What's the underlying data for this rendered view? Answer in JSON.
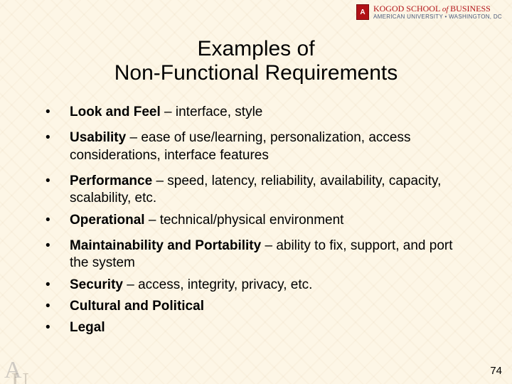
{
  "colors": {
    "background": "#fdf6e6",
    "text": "#000000",
    "header_red": "#b11116",
    "header_blue": "#4a5a7a",
    "watermark_gray": "rgba(120,120,130,0.35)"
  },
  "typography": {
    "title_fontsize": 30,
    "body_fontsize": 19,
    "header_fontsize": 12
  },
  "header": {
    "badge_letter": "A",
    "line1_prefix": "KOGOD SCHOOL ",
    "line1_of": "of ",
    "line1_suffix": "BUSINESS",
    "line2": "AMERICAN UNIVERSITY • WASHINGTON, DC"
  },
  "title": {
    "line1": "Examples of",
    "line2": "Non-Functional Requirements"
  },
  "bullets": [
    {
      "bold": "Look and Feel",
      "rest": " – interface, style",
      "tight": false
    },
    {
      "bold": "Usability",
      "rest": " – ease of use/learning, personalization, access considerations, interface features",
      "tight": false
    },
    {
      "bold": "Performance",
      "rest": " – speed, latency, reliability, availability, capacity, scalability, etc.",
      "tight": true
    },
    {
      "bold": "Operational",
      "rest": " – technical/physical environment",
      "tight": false
    },
    {
      "bold": "Maintainability and Portability",
      "rest": " – ability to fix, support, and port the system",
      "tight": true
    },
    {
      "bold": "Security",
      "rest": " – access, integrity, privacy, etc.",
      "tight": true
    },
    {
      "bold": "Cultural and Political",
      "rest": "",
      "tight": true
    },
    {
      "bold": "Legal",
      "rest": "",
      "tight": false
    }
  ],
  "bullet_char": "•",
  "watermark": {
    "a": "A",
    "u": "U"
  },
  "page_number": "74"
}
